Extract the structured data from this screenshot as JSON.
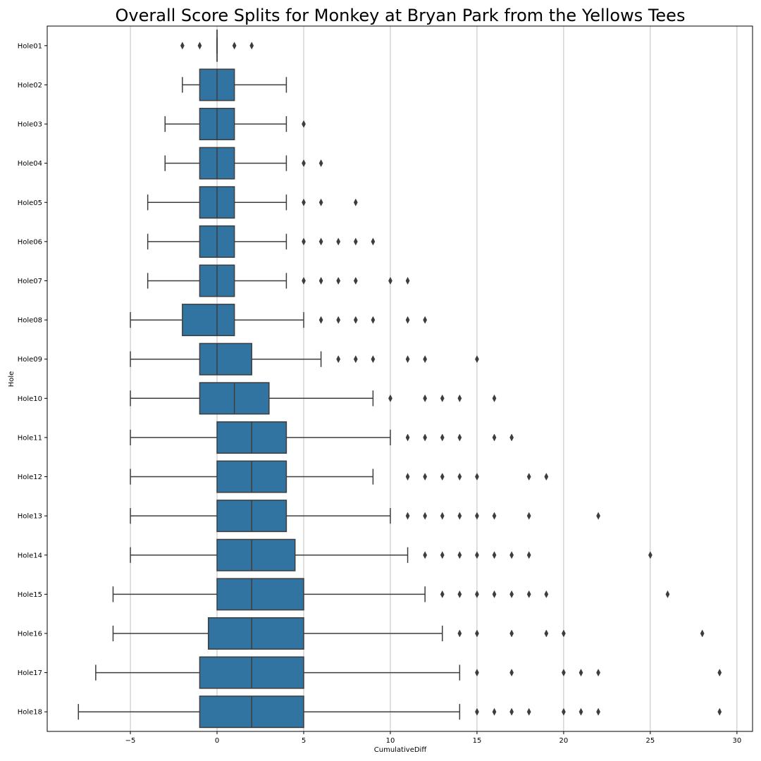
{
  "chart_data": {
    "type": "boxplot",
    "orientation": "horizontal",
    "title": "Overall Score Splits for Monkey at Bryan Park from the Yellows Tees",
    "xlabel": "CumulativeDiff",
    "ylabel": "Hole",
    "xlim": [
      -9.8,
      30.9
    ],
    "xticks": [
      -5,
      0,
      5,
      10,
      15,
      20,
      25,
      30
    ],
    "xtick_labels": [
      "−5",
      "0",
      "5",
      "10",
      "15",
      "20",
      "25",
      "30"
    ],
    "grid": "vertical",
    "box_color": "#3274a1",
    "edge_color": "#3d3d3d",
    "categories": [
      "Hole01",
      "Hole02",
      "Hole03",
      "Hole04",
      "Hole05",
      "Hole06",
      "Hole07",
      "Hole08",
      "Hole09",
      "Hole10",
      "Hole11",
      "Hole12",
      "Hole13",
      "Hole14",
      "Hole15",
      "Hole16",
      "Hole17",
      "Hole18"
    ],
    "boxes": [
      {
        "whislo": 0,
        "q1": 0,
        "med": 0,
        "q3": 0,
        "whishi": 0,
        "fliers": [
          -2,
          -1,
          1,
          2
        ]
      },
      {
        "whislo": -2,
        "q1": -1,
        "med": 0,
        "q3": 1,
        "whishi": 4,
        "fliers": []
      },
      {
        "whislo": -3,
        "q1": -1,
        "med": 0,
        "q3": 1,
        "whishi": 4,
        "fliers": [
          5
        ]
      },
      {
        "whislo": -3,
        "q1": -1,
        "med": 0,
        "q3": 1,
        "whishi": 4,
        "fliers": [
          5,
          6
        ]
      },
      {
        "whislo": -4,
        "q1": -1,
        "med": 0,
        "q3": 1,
        "whishi": 4,
        "fliers": [
          5,
          6,
          8
        ]
      },
      {
        "whislo": -4,
        "q1": -1,
        "med": 0,
        "q3": 1,
        "whishi": 4,
        "fliers": [
          5,
          6,
          7,
          8,
          9
        ]
      },
      {
        "whislo": -4,
        "q1": -1,
        "med": 0,
        "q3": 1,
        "whishi": 4,
        "fliers": [
          5,
          6,
          7,
          8,
          10,
          11
        ]
      },
      {
        "whislo": -5,
        "q1": -2,
        "med": 0,
        "q3": 1,
        "whishi": 5,
        "fliers": [
          6,
          7,
          8,
          9,
          11,
          12
        ]
      },
      {
        "whislo": -5,
        "q1": -1,
        "med": 0,
        "q3": 2,
        "whishi": 6,
        "fliers": [
          7,
          8,
          9,
          11,
          12,
          15
        ]
      },
      {
        "whislo": -5,
        "q1": -1,
        "med": 1,
        "q3": 3,
        "whishi": 9,
        "fliers": [
          10,
          12,
          13,
          14,
          16
        ]
      },
      {
        "whislo": -5,
        "q1": 0,
        "med": 2,
        "q3": 4,
        "whishi": 10,
        "fliers": [
          11,
          12,
          13,
          14,
          16,
          17
        ]
      },
      {
        "whislo": -5,
        "q1": 0,
        "med": 2,
        "q3": 4,
        "whishi": 9,
        "fliers": [
          11,
          12,
          13,
          14,
          15,
          18,
          19
        ]
      },
      {
        "whislo": -5,
        "q1": 0,
        "med": 2,
        "q3": 4,
        "whishi": 10,
        "fliers": [
          11,
          12,
          13,
          14,
          15,
          16,
          18,
          22
        ]
      },
      {
        "whislo": -5,
        "q1": 0,
        "med": 2,
        "q3": 4.5,
        "whishi": 11,
        "fliers": [
          12,
          13,
          14,
          15,
          16,
          17,
          18,
          25
        ]
      },
      {
        "whislo": -6,
        "q1": 0,
        "med": 2,
        "q3": 5,
        "whishi": 12,
        "fliers": [
          13,
          14,
          15,
          16,
          17,
          18,
          19,
          26
        ]
      },
      {
        "whislo": -6,
        "q1": -0.5,
        "med": 2,
        "q3": 5,
        "whishi": 13,
        "fliers": [
          14,
          15,
          17,
          19,
          20,
          28
        ]
      },
      {
        "whislo": -7,
        "q1": -1,
        "med": 2,
        "q3": 5,
        "whishi": 14,
        "fliers": [
          15,
          17,
          20,
          21,
          22,
          29
        ]
      },
      {
        "whislo": -8,
        "q1": -1,
        "med": 2,
        "q3": 5,
        "whishi": 14,
        "fliers": [
          15,
          16,
          17,
          18,
          20,
          21,
          22,
          29
        ]
      }
    ]
  }
}
